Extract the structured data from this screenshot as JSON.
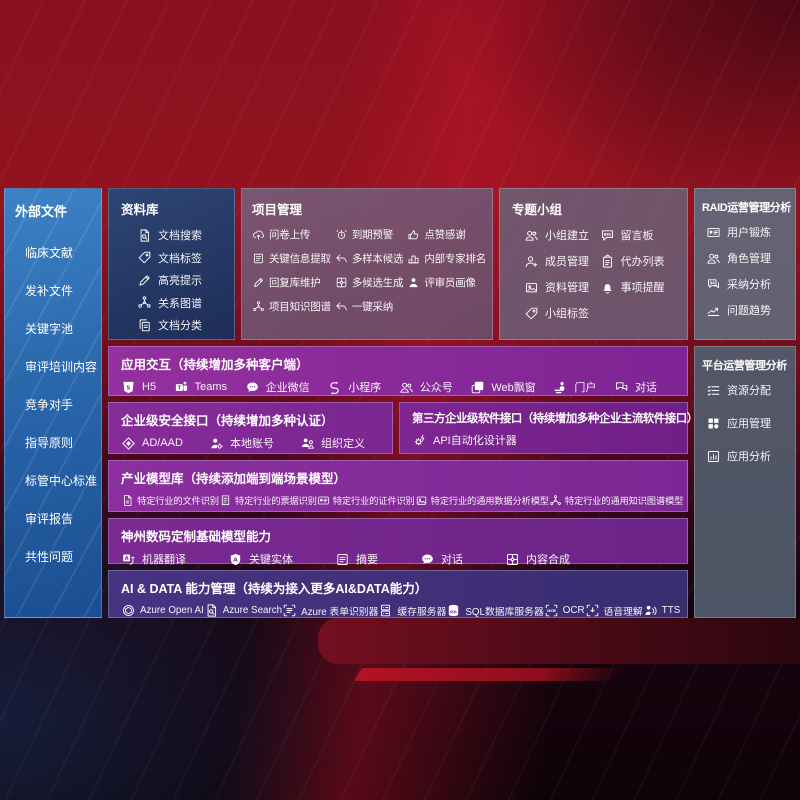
{
  "colors": {
    "band_purple": "#8a2d9c",
    "band_indigo": "#3f3076",
    "sidebar_blue": "#2e6eae",
    "library_navy": "#203e66",
    "backdrop_red": "#8a101f"
  },
  "sidebar": {
    "title": "外部文件",
    "items": [
      "临床文献",
      "发补文件",
      "关键字池",
      "审评培训内容",
      "竞争对手",
      "指导原则",
      "标管中心标准",
      "审评报告",
      "共性问题"
    ]
  },
  "panels": {
    "library": {
      "title": "资料库",
      "items": [
        {
          "icon": "doc-search",
          "label": "文档搜索"
        },
        {
          "icon": "tag",
          "label": "文档标签"
        },
        {
          "icon": "pencil",
          "label": "高亮提示"
        },
        {
          "icon": "network",
          "label": "关系图谱"
        },
        {
          "icon": "doc-copy",
          "label": "文档分类"
        }
      ]
    },
    "project": {
      "title": "项目管理",
      "items": [
        {
          "icon": "cloud-up",
          "label": "问卷上传"
        },
        {
          "icon": "alarm",
          "label": "到期预警"
        },
        {
          "icon": "thumb",
          "label": "点赞感谢"
        },
        {
          "icon": "framed-doc",
          "label": "关键信息提取"
        },
        {
          "icon": "reply",
          "label": "多样本候选"
        },
        {
          "icon": "podium",
          "label": "内部专家排名"
        },
        {
          "icon": "pencil",
          "label": "回复库维护"
        },
        {
          "icon": "puzzle",
          "label": "多候选生成"
        },
        {
          "icon": "person",
          "label": "评审员画像"
        },
        {
          "icon": "network",
          "label": "项目知识图谱"
        },
        {
          "icon": "reply",
          "label": "一键采纳"
        }
      ]
    },
    "groups": {
      "title": "专题小组",
      "items": [
        {
          "icon": "people",
          "label": "小组建立"
        },
        {
          "icon": "bbs",
          "label": "留言板"
        },
        {
          "icon": "person-add",
          "label": "成员管理"
        },
        {
          "icon": "clipboard",
          "label": "代办列表"
        },
        {
          "icon": "image",
          "label": "资料管理"
        },
        {
          "icon": "bell",
          "label": "事项提醒"
        },
        {
          "icon": "tag",
          "label": "小组标签"
        }
      ]
    },
    "raid": {
      "title": "RAID运营管理分析",
      "items": [
        {
          "icon": "id-card",
          "label": "用户锻炼"
        },
        {
          "icon": "people",
          "label": "角色管理"
        },
        {
          "icon": "qa",
          "label": "采纳分析"
        },
        {
          "icon": "trend",
          "label": "问题趋势"
        }
      ]
    },
    "platform": {
      "title": "平台运营管理分析",
      "items": [
        {
          "icon": "list-check",
          "label": "资源分配"
        },
        {
          "icon": "grid",
          "label": "应用管理"
        },
        {
          "icon": "chart-box",
          "label": "应用分析"
        }
      ]
    }
  },
  "bands": {
    "interaction": {
      "title": "应用交互（持续增加多种客户端）",
      "items": [
        {
          "icon": "h5",
          "label": "H5"
        },
        {
          "icon": "teams",
          "label": "Teams"
        },
        {
          "icon": "chat",
          "label": "企业微信"
        },
        {
          "icon": "s-curve",
          "label": "小程序"
        },
        {
          "icon": "people",
          "label": "公众号"
        },
        {
          "icon": "window",
          "label": "Web飘窗"
        },
        {
          "icon": "portal",
          "label": "门户"
        },
        {
          "icon": "dialog",
          "label": "对话"
        }
      ]
    },
    "security": {
      "title": "企业级安全接口（持续增加多种认证）",
      "items": [
        {
          "icon": "diamond",
          "label": "AD/AAD"
        },
        {
          "icon": "person-gear",
          "label": "本地账号"
        },
        {
          "icon": "org",
          "label": "组织定义"
        }
      ]
    },
    "thirdparty": {
      "title": "第三方企业级软件接口（持续增加多种企业主流软件接口）",
      "items": [
        {
          "icon": "api-gear",
          "label": "API自动化设计器"
        }
      ]
    },
    "models": {
      "title": "产业模型库（持续添加端到端场景模型）",
      "items": [
        {
          "icon": "doc",
          "label": "特定行业的文件识别"
        },
        {
          "icon": "receipt",
          "label": "特定行业的票据识别"
        },
        {
          "icon": "id-card",
          "label": "特定行业的证件识别"
        },
        {
          "icon": "image",
          "label": "特定行业的通用数据分析模型"
        },
        {
          "icon": "network",
          "label": "特定行业的通用知识图谱模型"
        }
      ]
    },
    "base": {
      "title": "神州数码定制基础模型能力",
      "items": [
        {
          "icon": "translate",
          "label": "机器翻译"
        },
        {
          "icon": "shield-a",
          "label": "关键实体"
        },
        {
          "icon": "framed-doc",
          "label": "摘要"
        },
        {
          "icon": "chat",
          "label": "对话"
        },
        {
          "icon": "puzzle",
          "label": "内容合成"
        }
      ]
    },
    "ai": {
      "title": "AI & DATA 能力管理（持续为接入更多AI&DATA能力）",
      "items": [
        {
          "icon": "openai",
          "label": "Azure Open AI"
        },
        {
          "icon": "doc-search",
          "label": "Azure Search"
        },
        {
          "icon": "form",
          "label": "Azure 表单识别器"
        },
        {
          "icon": "server",
          "label": "缓存服务器"
        },
        {
          "icon": "db",
          "label": "SQL数据库服务器"
        },
        {
          "icon": "ocr",
          "label": "OCR"
        },
        {
          "icon": "speech",
          "label": "语音理解"
        },
        {
          "icon": "tts",
          "label": "TTS"
        }
      ]
    }
  }
}
